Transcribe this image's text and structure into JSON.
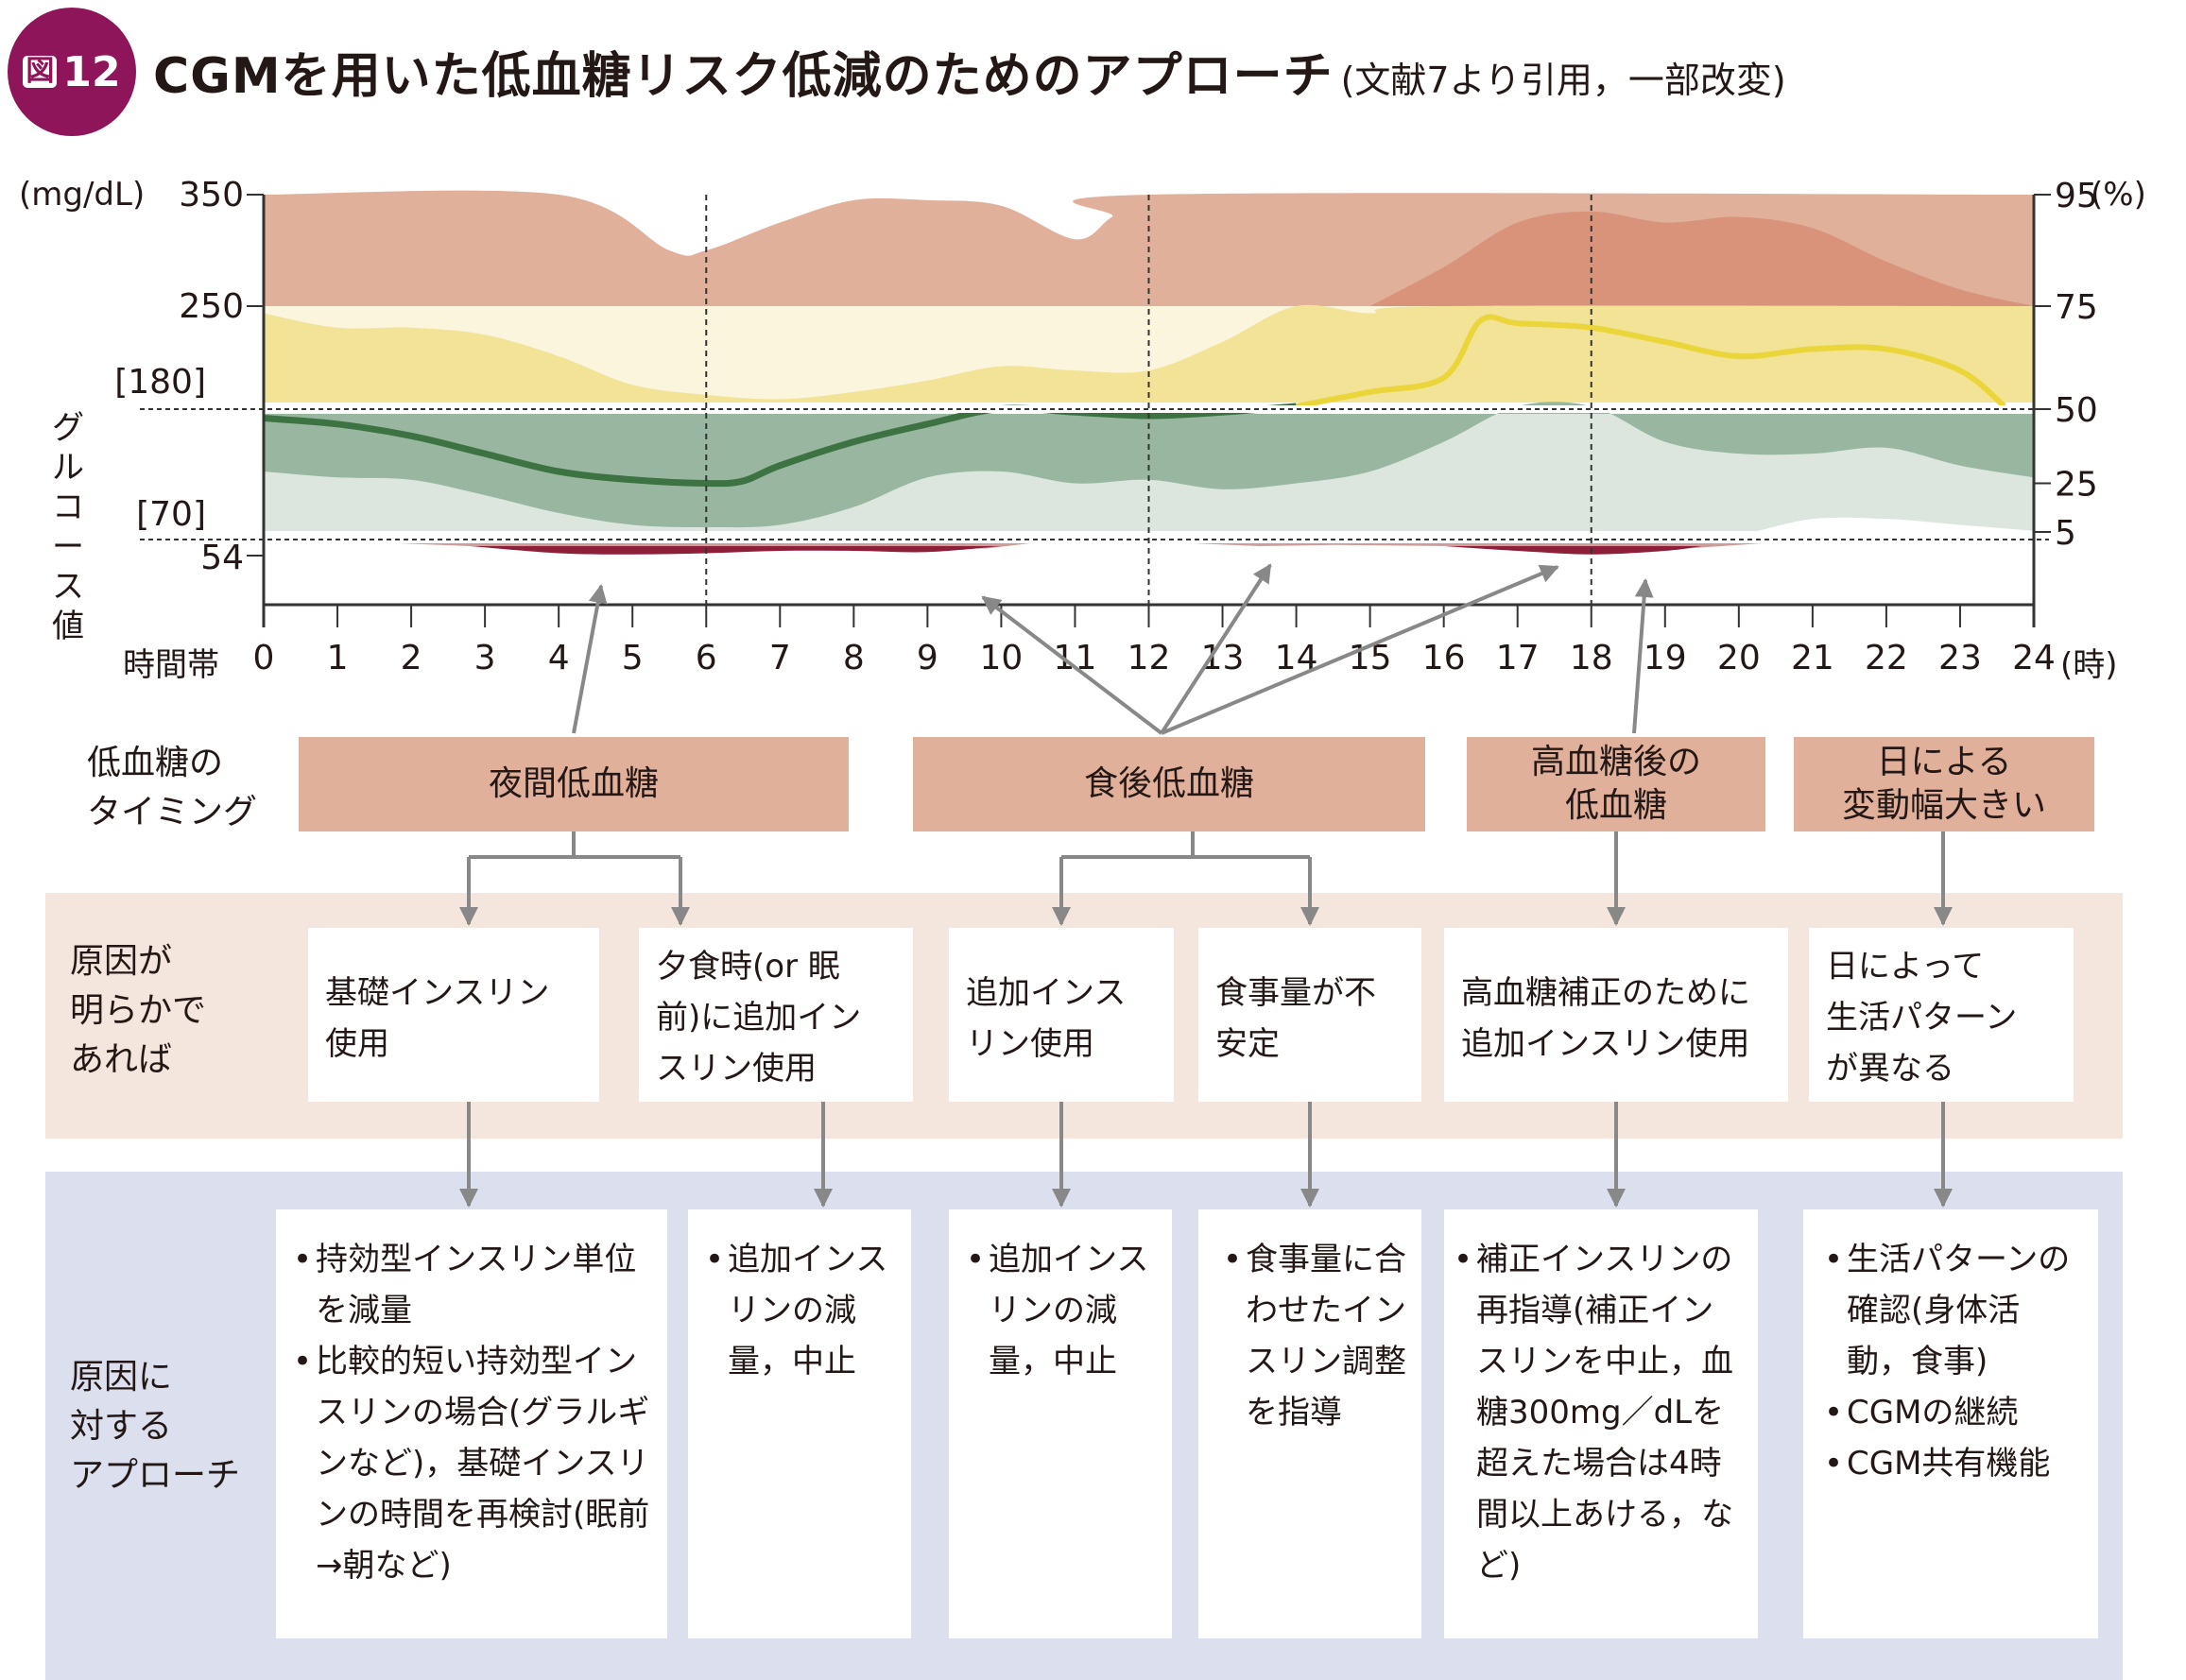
{
  "header": {
    "badge_prefix": "図",
    "badge_number": "12",
    "title": "CGMを用いた低血糖リスク低減のためのアプローチ",
    "citation": "(文献7より引用，一部改変)"
  },
  "colors": {
    "badge": "#8e1559",
    "high_outer": "#e1b09b",
    "high_inner": "#d9937a",
    "above_pale": "#faf5dc",
    "above": "#f2e396",
    "above_median": "#ead63a",
    "range_outer": "#dce6df",
    "range_inner": "#99b7a0",
    "range_median": "#3d7242",
    "range_hint": "#adb4bf",
    "low_outer": "#cf9d98",
    "low_inner": "#8d1f39",
    "timing_box": "#e1b09b",
    "cause_band": "#f4e6dc",
    "approach_band": "#dcdfee",
    "arrow": "#888888"
  },
  "chart_data": {
    "type": "area",
    "title": "",
    "ylabel": "グルコース値",
    "yunit": "(mg/dL)",
    "xlabel": "時間帯",
    "xunit": "(時)",
    "xlim": [
      0,
      24
    ],
    "x_ticks": [
      "0",
      "1",
      "2",
      "3",
      "4",
      "5",
      "6",
      "7",
      "8",
      "9",
      "10",
      "11",
      "12",
      "13",
      "14",
      "15",
      "16",
      "17",
      "18",
      "19",
      "20",
      "21",
      "22",
      "23",
      "24"
    ],
    "y_ticks_left": [
      "350",
      "250",
      "[180]",
      "[70]",
      "54"
    ],
    "y_ticks_right": [
      "95",
      "75",
      "50",
      "25",
      "5"
    ],
    "y_right_unit": "(%)",
    "reference_lines": [
      180,
      70
    ],
    "vertical_guides": [
      6,
      12,
      18
    ],
    "series": [
      {
        "name": "percentile band 75-95 (above 250)",
        "x": [
          0,
          4,
          5.5,
          6,
          7,
          8,
          9,
          10,
          11,
          11.5,
          12,
          24
        ],
        "values": [
          350,
          350,
          300,
          300,
          325,
          345,
          345,
          340,
          310,
          330,
          350,
          350
        ]
      },
      {
        "name": "high band inner (>250, concentrated)",
        "x": [
          15,
          16,
          17,
          18,
          19,
          20,
          21,
          22,
          23,
          24
        ],
        "values": [
          250,
          285,
          325,
          335,
          325,
          330,
          320,
          290,
          265,
          250
        ]
      },
      {
        "name": "percentile 75 upper (180-250 region)",
        "x": [
          0,
          1,
          2,
          3,
          4,
          5,
          6,
          7,
          8,
          9,
          10,
          11,
          12,
          13,
          14,
          15,
          16,
          24
        ],
        "values": [
          245,
          235,
          235,
          230,
          215,
          195,
          188,
          185,
          190,
          198,
          208,
          205,
          205,
          225,
          250,
          245,
          250,
          250
        ]
      },
      {
        "name": "median (above range)",
        "x": [
          14,
          15,
          16,
          16.5,
          17,
          18,
          19,
          20,
          21,
          22,
          23,
          23.6
        ],
        "values": [
          180,
          190,
          200,
          240,
          238,
          235,
          225,
          215,
          220,
          220,
          205,
          180
        ]
      },
      {
        "name": "median (in range)",
        "x": [
          0,
          1,
          2,
          3,
          4,
          5,
          6,
          6.5,
          7,
          8,
          9,
          10,
          11,
          12,
          13,
          14
        ],
        "values": [
          170,
          165,
          155,
          140,
          125,
          118,
          115,
          117,
          130,
          150,
          165,
          178,
          175,
          172,
          175,
          180
        ]
      },
      {
        "name": "percentile 25 lower",
        "x": [
          0,
          1,
          2,
          3,
          4,
          5,
          6,
          7,
          8,
          9,
          10,
          11,
          12,
          13,
          14,
          15,
          16,
          17,
          18,
          19,
          20,
          21,
          22,
          23,
          24
        ],
        "values": [
          125,
          120,
          118,
          105,
          90,
          80,
          78,
          80,
          95,
          120,
          125,
          115,
          118,
          110,
          115,
          125,
          150,
          180,
          180,
          150,
          140,
          140,
          145,
          130,
          120
        ]
      },
      {
        "name": "percentile 5 lower",
        "x": [
          0,
          1,
          2,
          3,
          4,
          5,
          6,
          7,
          8,
          9,
          10,
          11,
          12,
          13,
          14,
          15,
          16,
          17,
          18,
          19,
          20,
          21,
          22,
          23,
          24
        ],
        "values": [
          72,
          70,
          70,
          70,
          70,
          70,
          74,
          72,
          70,
          70,
          69,
          70,
          72,
          70,
          70,
          70,
          70,
          70,
          70,
          70,
          72,
          85,
          85,
          80,
          75
        ]
      },
      {
        "name": "low outer (<70)",
        "x": [
          1.5,
          3,
          4,
          5,
          6,
          7,
          8,
          9,
          10,
          10.5,
          13,
          14,
          15,
          16,
          17,
          18,
          19,
          20.5
        ],
        "values": [
          70,
          62,
          58,
          56,
          57,
          58,
          60,
          60,
          60,
          70,
          62,
          62,
          64,
          62,
          58,
          55,
          60,
          70
        ]
      },
      {
        "name": "low inner (<54)",
        "x": [
          2.8,
          4,
          5,
          6,
          7,
          8,
          9,
          10,
          16,
          17,
          18,
          19,
          19.5
        ],
        "values": [
          62,
          56,
          55,
          56,
          58,
          58,
          57,
          62,
          62,
          58,
          55,
          58,
          62
        ]
      }
    ]
  },
  "rows": {
    "timing_label": "低血糖の\nタイミング",
    "cause_label": "原因が\n明らかで\nあれば",
    "approach_label": "原因に\n対する\nアプローチ"
  },
  "timing": [
    {
      "label": "夜間低血糖"
    },
    {
      "label": "食後低血糖"
    },
    {
      "label": "高血糖後の\n低血糖"
    },
    {
      "label": "日による\n変動幅大きい"
    }
  ],
  "causes": [
    "基礎インスリン\n使用",
    "夕食時(or 眠\n前)に追加イン\nスリン使用",
    "追加インス\nリン使用",
    "食事量が不\n安定",
    "高血糖補正のために\n追加インスリン使用",
    "日によって\n生活パターン\nが異なる"
  ],
  "approaches": [
    [
      "持効型インスリン単位を減量",
      "比較的短い持効型インスリンの場合(グラルギンなど)，基礎インスリンの時間を再検討(眠前→朝など)"
    ],
    [
      "追加インスリンの減量，中止"
    ],
    [
      "追加インスリンの減量，中止"
    ],
    [
      "食事量に合わせたインスリン調整を指導"
    ],
    [
      "補正インスリンの再指導(補正インスリンを中止，血糖300mg／dLを超えた場合は4時間以上あける，など)"
    ],
    [
      "生活パターンの確認(身体活動，食事)",
      "CGMの継続",
      "CGM共有機能"
    ]
  ]
}
